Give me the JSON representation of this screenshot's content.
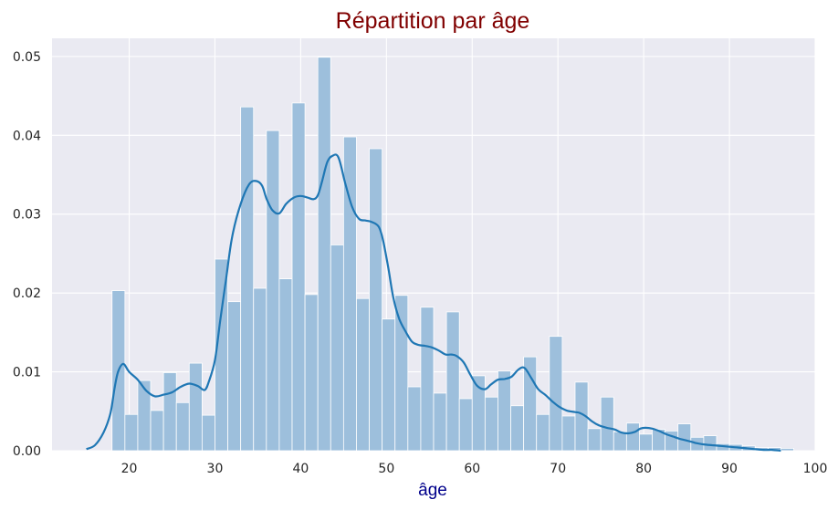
{
  "chart_data": {
    "type": "bar",
    "title": "Répartition par âge",
    "xlabel": "âge",
    "ylabel": "",
    "xlim": [
      11,
      100
    ],
    "ylim": [
      0,
      0.0523
    ],
    "grid": true,
    "style": {
      "background": "#eaeaf2",
      "bar_color": "#9dbfdc",
      "bar_edge": "#ffffff",
      "kde_color": "#1f77b4",
      "title_color": "#800000",
      "xlabel_color": "#00008b"
    },
    "x_ticks": [
      20,
      30,
      40,
      50,
      60,
      70,
      80,
      90,
      100
    ],
    "x_tick_labels": [
      "20",
      "30",
      "40",
      "50",
      "60",
      "70",
      "80",
      "90",
      "100"
    ],
    "y_ticks": [
      0,
      0.01,
      0.02,
      0.03,
      0.04,
      0.05
    ],
    "y_tick_labels": [
      "0.00",
      "0.01",
      "0.02",
      "0.03",
      "0.04",
      "0.05"
    ],
    "bin_width": 1.5,
    "bin_start": 18,
    "histogram_values": [
      0.0203,
      0.0046,
      0.0089,
      0.0051,
      0.0099,
      0.0061,
      0.0111,
      0.0045,
      0.0243,
      0.0189,
      0.0436,
      0.0206,
      0.0406,
      0.0218,
      0.0441,
      0.0198,
      0.0499,
      0.0261,
      0.0398,
      0.0193,
      0.0383,
      0.0167,
      0.0197,
      0.0081,
      0.0182,
      0.0073,
      0.0176,
      0.0066,
      0.0095,
      0.0068,
      0.0101,
      0.0057,
      0.0119,
      0.0046,
      0.0145,
      0.0044,
      0.0087,
      0.0028,
      0.0068,
      0.0024,
      0.0035,
      0.0021,
      0.0027,
      0.0025,
      0.0034,
      0.0017,
      0.0019,
      0.0009,
      0.0008,
      0.0006,
      0.0004,
      0.0004,
      0.0003
    ],
    "kde_x": [
      15,
      16,
      17,
      17.8,
      18.3,
      18.7,
      19.3,
      20,
      21,
      22,
      23,
      24,
      25,
      26,
      27,
      28,
      28.8,
      29.3,
      30,
      30.6,
      31.3,
      32,
      33,
      34,
      34.8,
      35.5,
      36,
      36.7,
      37.5,
      38.3,
      39.2,
      40,
      40.8,
      41.5,
      42,
      42.5,
      43.1,
      43.7,
      44.4,
      45.2,
      46,
      46.8,
      47.5,
      48.3,
      49.1,
      49.6,
      50.2,
      50.8,
      51.5,
      52.3,
      53,
      53.8,
      54.5,
      55.3,
      56.1,
      56.9,
      57.6,
      58.2,
      59,
      59.8,
      60.6,
      61.5,
      62.2,
      63,
      63.8,
      64.6,
      65.4,
      66.1,
      66.9,
      67.7,
      68.5,
      69.3,
      70.1,
      71,
      72,
      72.5,
      73.2,
      74,
      74.8,
      75.7,
      76.6,
      77.4,
      78.2,
      79,
      79.6,
      80.2,
      81,
      81.8,
      82.6,
      83.4,
      84.2,
      85,
      86,
      87,
      88,
      89,
      90,
      91,
      92,
      93,
      94,
      95,
      96
    ],
    "kde_y": [
      0.0002,
      0.0007,
      0.0023,
      0.0047,
      0.008,
      0.01,
      0.011,
      0.01,
      0.009,
      0.0076,
      0.0069,
      0.0071,
      0.0074,
      0.0081,
      0.0085,
      0.0082,
      0.0077,
      0.0088,
      0.0115,
      0.0164,
      0.0218,
      0.0271,
      0.0313,
      0.0338,
      0.0342,
      0.0336,
      0.032,
      0.0305,
      0.0301,
      0.0313,
      0.0321,
      0.0323,
      0.0321,
      0.0319,
      0.0324,
      0.0342,
      0.0366,
      0.0374,
      0.0372,
      0.0339,
      0.0309,
      0.0294,
      0.0292,
      0.029,
      0.0284,
      0.0267,
      0.0233,
      0.0194,
      0.0167,
      0.015,
      0.0138,
      0.0134,
      0.0133,
      0.0131,
      0.0127,
      0.0122,
      0.0122,
      0.012,
      0.0112,
      0.0096,
      0.0082,
      0.0078,
      0.0084,
      0.009,
      0.0091,
      0.0094,
      0.0103,
      0.0105,
      0.0092,
      0.0078,
      0.0071,
      0.0063,
      0.0056,
      0.0051,
      0.0049,
      0.0048,
      0.0044,
      0.0037,
      0.0032,
      0.0029,
      0.0027,
      0.0023,
      0.0022,
      0.0024,
      0.0028,
      0.0029,
      0.0028,
      0.0025,
      0.0021,
      0.0018,
      0.0015,
      0.0013,
      0.001,
      0.0008,
      0.0007,
      0.0006,
      0.0005,
      0.0004,
      0.0003,
      0.0002,
      0.0001,
      0.0001,
      0.0
    ]
  }
}
